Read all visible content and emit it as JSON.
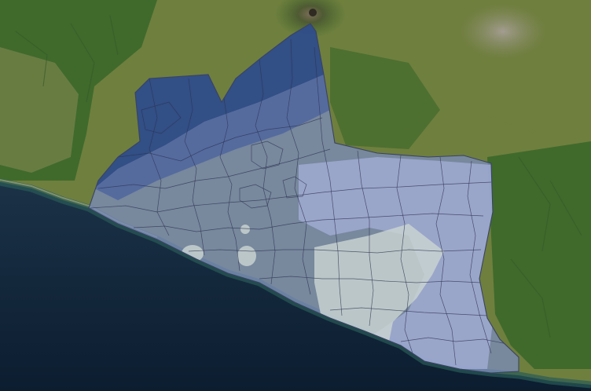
{
  "map": {
    "type": "choropleth-overlay-on-satellite",
    "basemap": "satellite-imagery",
    "zones": [
      {
        "name": "zone-high",
        "color": "#1f3f80",
        "opacity": 0.78
      },
      {
        "name": "zone-mid-high",
        "color": "#48609e",
        "opacity": 0.72
      },
      {
        "name": "zone-mid",
        "color": "#7b8cc2",
        "opacity": 0.72
      },
      {
        "name": "zone-low-mid",
        "color": "#a3acd6",
        "opacity": 0.8
      },
      {
        "name": "zone-low",
        "color": "#c9d4d2",
        "opacity": 0.82
      }
    ],
    "colors": {
      "land_forest": "#3f6a2c",
      "land_field": "#6f7f3e",
      "land_dry": "#8a8a55",
      "urban": "#9a9488",
      "ocean_deep": "#0f2236",
      "ocean_shallow": "#2a5b57",
      "beach": "#b8b48e"
    }
  }
}
